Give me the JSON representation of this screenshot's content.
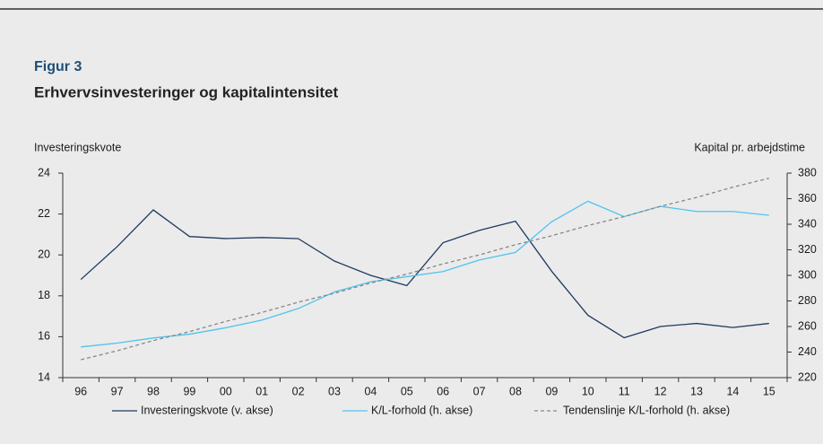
{
  "chart_data": {
    "type": "line",
    "figure_label": "Figur 3",
    "title": "Erhvervsinvesteringer og kapitalintensitet",
    "y_label": "Investeringskvote",
    "y2_label": "Kapital pr. arbejdstime",
    "categories": [
      "96",
      "97",
      "98",
      "99",
      "00",
      "01",
      "02",
      "03",
      "04",
      "05",
      "06",
      "07",
      "08",
      "09",
      "10",
      "11",
      "12",
      "13",
      "14",
      "15"
    ],
    "series": [
      {
        "name": "Investeringskvote (v. akse)",
        "color": "#1f3a5f",
        "values": [
          18.8,
          20.4,
          22.2,
          20.9,
          20.8,
          20.85,
          20.8,
          19.7,
          19.0,
          18.5,
          20.6,
          21.2,
          21.65,
          19.2,
          17.05,
          15.95,
          16.5,
          16.65,
          16.45,
          16.65
        ]
      },
      {
        "name": "K/L-forhold (h. akse)",
        "color": "#4fc3f0",
        "axis": "y2",
        "values": [
          244,
          247,
          251,
          254,
          259,
          265,
          274,
          287,
          295,
          299,
          303,
          312,
          318,
          342,
          358,
          346,
          354,
          350,
          350,
          347
        ]
      },
      {
        "name": "Tendenslinje K/L-forhold (h. akse)",
        "color": "#888888",
        "axis": "y2",
        "dashed": true,
        "values": [
          234,
          241,
          249,
          256,
          264,
          271,
          279,
          286,
          294,
          301,
          309,
          316,
          324,
          331,
          339,
          346,
          354,
          361,
          369,
          376
        ]
      }
    ],
    "ylim": [
      14,
      24
    ],
    "yticks": [
      14,
      16,
      18,
      20,
      22,
      24
    ],
    "y2lim": [
      220,
      380
    ],
    "y2ticks": [
      220,
      240,
      260,
      280,
      300,
      320,
      340,
      360,
      380
    ],
    "grid": false,
    "legend": "bottom"
  }
}
